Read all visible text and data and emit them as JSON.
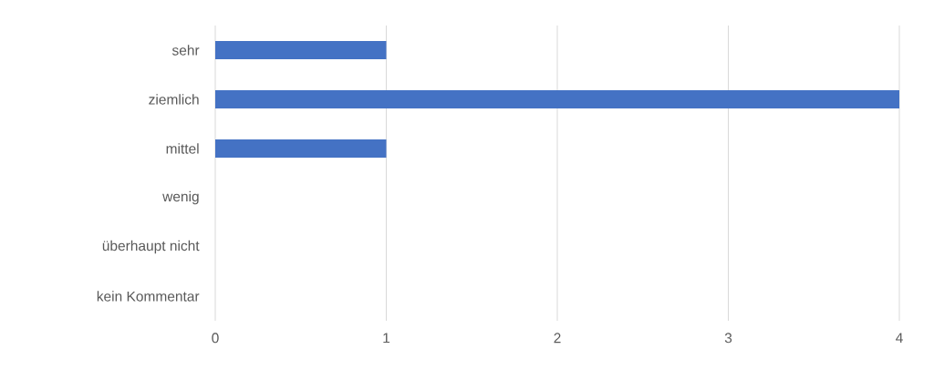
{
  "chart_data": {
    "type": "bar",
    "orientation": "horizontal",
    "categories": [
      "sehr",
      "ziemlich",
      "mittel",
      "wenig",
      "überhaupt nicht",
      "kein Kommentar"
    ],
    "values": [
      1,
      4,
      1,
      0,
      0,
      0
    ],
    "color": "#4472c4",
    "xlim": [
      0,
      4
    ],
    "xticks": [
      0,
      1,
      2,
      3,
      4
    ],
    "grid": "x"
  }
}
